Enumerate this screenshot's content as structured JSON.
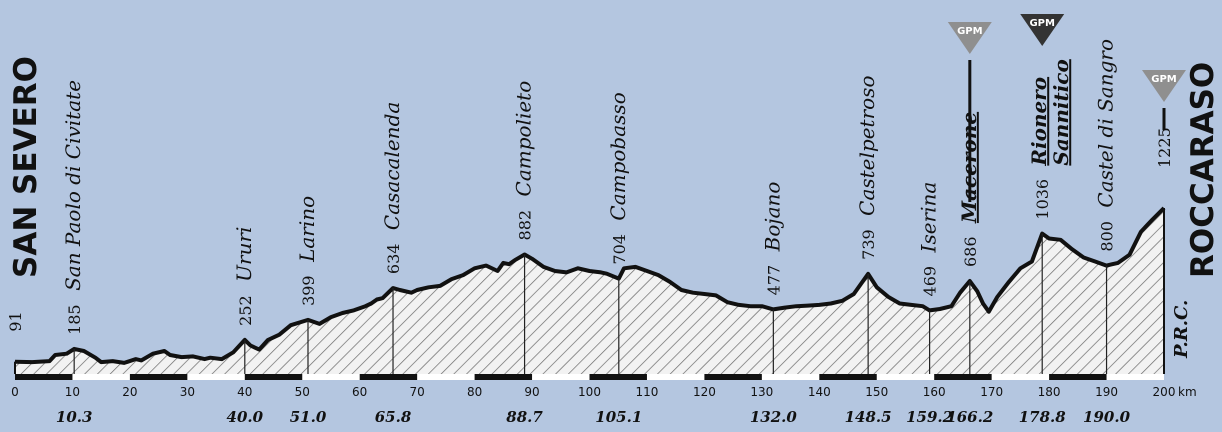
{
  "chart_data": {
    "type": "area",
    "xlabel": "",
    "ylabel": "",
    "xlim": [
      0,
      200
    ],
    "ylim": [
      0,
      1300
    ],
    "x_unit": "km",
    "x_ticks": [
      0,
      10,
      20,
      30,
      40,
      50,
      60,
      70,
      80,
      90,
      100,
      110,
      120,
      130,
      140,
      150,
      160,
      170,
      180,
      190,
      200
    ],
    "start_name": "SAN SEVERO",
    "finish_name": "ROCCARASO",
    "finish_km": 200,
    "finish_alt": "1225",
    "credit": "P.R.C.",
    "profile": {
      "x": [
        0,
        3,
        6,
        7,
        9,
        10.3,
        12,
        14,
        15,
        17,
        19,
        21,
        22,
        24,
        26,
        27,
        29,
        31,
        33,
        34,
        36,
        38,
        40,
        41,
        42.5,
        44,
        46,
        48,
        51,
        53,
        55,
        57,
        59,
        61,
        62,
        63,
        64,
        65.8,
        67,
        69,
        70,
        72,
        74,
        76,
        78,
        80,
        82,
        84,
        85,
        86,
        87,
        88.7,
        90,
        92,
        94,
        96,
        98,
        100,
        102,
        103,
        105.1,
        106,
        108,
        110,
        112,
        114,
        116,
        118,
        120,
        122,
        124,
        126,
        128,
        130,
        132,
        134,
        136,
        138,
        140,
        142,
        144,
        146,
        148.5,
        150,
        152,
        154,
        156,
        158,
        159.2,
        161,
        163,
        164.5,
        166.2,
        167.5,
        168.5,
        169.5,
        171,
        173,
        175,
        177,
        178.8,
        180,
        182,
        184,
        186,
        188,
        190,
        191,
        192,
        194,
        196,
        198,
        200
      ],
      "y": [
        91,
        88,
        95,
        140,
        150,
        185,
        170,
        120,
        88,
        95,
        82,
        110,
        100,
        150,
        170,
        140,
        125,
        130,
        110,
        120,
        110,
        160,
        252,
        210,
        180,
        250,
        290,
        360,
        399,
        370,
        420,
        450,
        470,
        500,
        520,
        550,
        560,
        634,
        620,
        600,
        620,
        640,
        650,
        700,
        730,
        780,
        800,
        760,
        820,
        810,
        840,
        882,
        850,
        790,
        760,
        750,
        780,
        760,
        750,
        740,
        704,
        780,
        790,
        760,
        730,
        680,
        620,
        600,
        590,
        580,
        530,
        510,
        500,
        500,
        477,
        490,
        500,
        505,
        510,
        520,
        540,
        590,
        739,
        640,
        570,
        520,
        510,
        500,
        469,
        480,
        500,
        600,
        686,
        610,
        520,
        460,
        570,
        680,
        780,
        830,
        1036,
        1000,
        990,
        920,
        860,
        830,
        800,
        810,
        820,
        880,
        1050,
        1140,
        1225
      ],
      "fill": "hatched",
      "line_color": "#111111"
    },
    "places": [
      {
        "name": "San Paolo di Civitate",
        "km": 10.3,
        "alt": "185",
        "km_label": "10.3"
      },
      {
        "name": "Ururi",
        "km": 40.0,
        "alt": "252",
        "km_label": "40.0"
      },
      {
        "name": "Larino",
        "km": 51.0,
        "alt": "399",
        "km_label": "51.0"
      },
      {
        "name": "Casacalenda",
        "km": 65.8,
        "alt": "634",
        "km_label": "65.8"
      },
      {
        "name": "Campolieto",
        "km": 88.7,
        "alt": "882",
        "km_label": "88.7"
      },
      {
        "name": "Campobasso",
        "km": 105.1,
        "alt": "704",
        "km_label": "105.1"
      },
      {
        "name": "Bojano",
        "km": 132.0,
        "alt": "477",
        "km_label": "132.0"
      },
      {
        "name": "Castelpetroso",
        "km": 148.5,
        "alt": "739",
        "km_label": "148.5"
      },
      {
        "name": "Iserina",
        "km": 159.2,
        "alt": "469",
        "km_label": "159.2"
      },
      {
        "name": "Macerone",
        "km": 166.2,
        "alt": "686",
        "km_label": "166.2",
        "gpm": true
      },
      {
        "name": "Rionero Sannitico",
        "lines": [
          "Rionero",
          "Sannitico"
        ],
        "km": 178.8,
        "alt": "1036",
        "km_label": "178.8",
        "gpm": true
      },
      {
        "name": "Castel di Sangro",
        "km": 190.0,
        "alt": "800",
        "km_label": "190.0"
      }
    ],
    "start_alt": "91",
    "gpm_label": "GPM",
    "gpm_markers": [
      {
        "km": 166.2,
        "color": "#8f8f8f"
      },
      {
        "km": 178.8,
        "color": "#333333"
      },
      {
        "km": 200,
        "color": "#8f8f8f"
      }
    ],
    "colors": {
      "background": "#b4c6e0",
      "hatch": "#6a6a6a",
      "area": "#f2f2f2"
    }
  }
}
